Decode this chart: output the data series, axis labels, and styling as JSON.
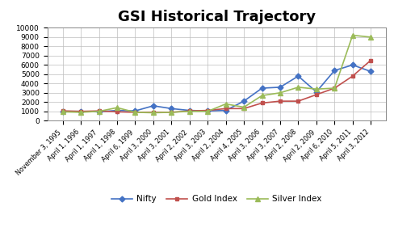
{
  "title": "GSI Historical Trajectory",
  "x_labels": [
    "November 3, 1995",
    "April 1, 1996",
    "April 1, 1997",
    "April 1, 1998",
    "April 6, 1999",
    "April 3, 2000",
    "April 3, 2001",
    "April 2, 2002",
    "April 3, 2003",
    "April 2, 2004",
    "April 4, 2005",
    "April 3, 2006",
    "April 3, 2007",
    "April 2, 2008",
    "April 2, 2009",
    "April 6, 2010",
    "April 5, 2011",
    "April 3, 2012"
  ],
  "nifty": [
    1000,
    1000,
    950,
    1100,
    1050,
    1600,
    1300,
    1100,
    1050,
    1100,
    2100,
    3500,
    3600,
    4800,
    3100,
    5400,
    6000,
    5300
  ],
  "gold": [
    1050,
    1000,
    1050,
    950,
    900,
    900,
    900,
    1050,
    1100,
    1300,
    1300,
    1900,
    2100,
    2100,
    2800,
    3500,
    4800,
    6500
  ],
  "silver": [
    950,
    900,
    1000,
    1400,
    900,
    850,
    900,
    1000,
    1000,
    1800,
    1450,
    2700,
    3000,
    3600,
    3400,
    3500,
    9200,
    9000
  ],
  "nifty_color": "#4472C4",
  "gold_color": "#C0504D",
  "silver_color": "#9BBB59",
  "ylim": [
    0,
    10000
  ],
  "yticks": [
    0,
    1000,
    2000,
    3000,
    4000,
    5000,
    6000,
    7000,
    8000,
    9000,
    10000
  ],
  "bg_color": "#FFFFFF",
  "grid_color": "#BEBEBE",
  "title_fontsize": 13,
  "tick_fontsize": 6.5,
  "xtick_fontsize": 5.8,
  "legend_labels": [
    "Nifty",
    "Gold Index",
    "Silver Index"
  ]
}
